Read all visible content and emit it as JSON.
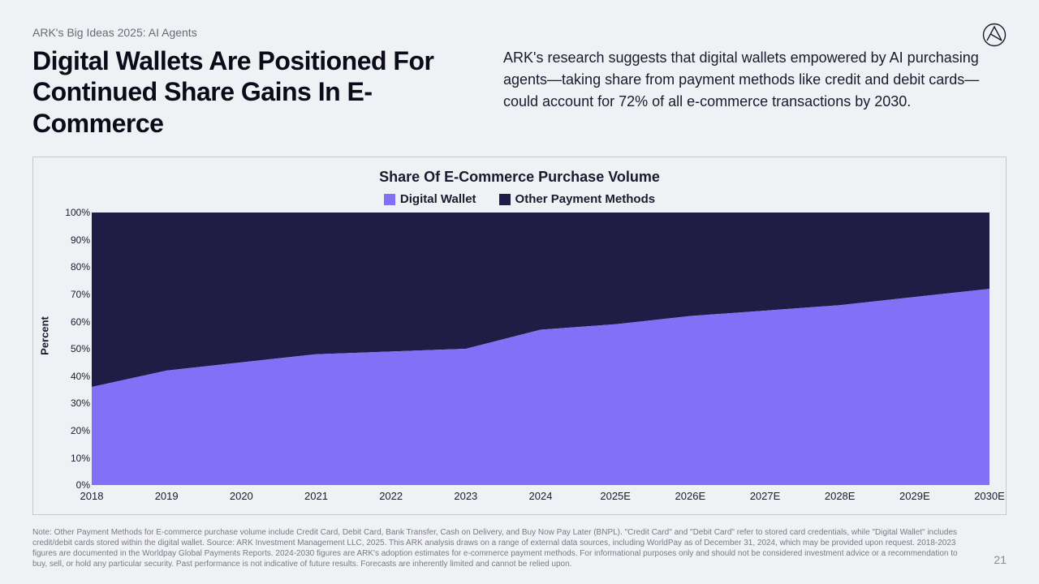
{
  "eyebrow": "ARK's Big Ideas 2025: AI Agents",
  "title": "Digital Wallets Are Positioned For Continued Share Gains In E-Commerce",
  "subtitle": "ARK's research suggests that digital wallets empowered by AI purchasing agents—taking share from payment methods like credit and debit cards—could account for 72% of all e-commerce transactions by 2030.",
  "page_number": "21",
  "footnote": "Note: Other Payment Methods for E-commerce purchase volume include Credit Card, Debit Card, Bank Transfer, Cash on Delivery, and Buy Now Pay Later (BNPL). \"Credit Card\" and \"Debit Card\" refer to stored card credentials, while \"Digital Wallet\" includes credit/debit cards stored within the digital wallet. Source: ARK Investment Management LLC, 2025. This ARK analysis draws on a range of external data sources, including WorldPay as of December 31, 2024, which may be provided upon request. 2018-2023 figures are documented in the Worldpay Global Payments Reports. 2024-2030 figures are ARK's adoption estimates for e-commerce payment methods. For informational purposes only and should not be considered investment advice or a recommendation to buy, sell, or hold any particular security. Past performance is not indicative of future results. Forecasts are inherently limited and cannot be relied upon.",
  "chart": {
    "type": "stacked-area",
    "title": "Share Of E-Commerce Purchase Volume",
    "y_axis_title": "Percent",
    "ylim": [
      0,
      100
    ],
    "ytick_step": 10,
    "y_tick_suffix": "%",
    "background_color": "#f0f1f4",
    "border_color": "#c8c9d0",
    "title_fontsize": 18,
    "label_fontsize": 13,
    "legend": [
      {
        "label": "Digital Wallet",
        "color": "#8270f6"
      },
      {
        "label": "Other Payment Methods",
        "color": "#1f1c45"
      }
    ],
    "categories": [
      "2018",
      "2019",
      "2020",
      "2021",
      "2022",
      "2023",
      "2024",
      "2025E",
      "2026E",
      "2027E",
      "2028E",
      "2029E",
      "2030E"
    ],
    "series": {
      "digital_wallet": [
        36,
        42,
        45,
        48,
        49,
        50,
        57,
        59,
        62,
        64,
        66,
        69,
        72
      ],
      "other_payment_methods": [
        64,
        58,
        55,
        52,
        51,
        50,
        43,
        41,
        38,
        36,
        34,
        31,
        28
      ]
    },
    "colors": {
      "digital_wallet": "#8270f6",
      "other_payment_methods": "#1f1c45"
    }
  }
}
